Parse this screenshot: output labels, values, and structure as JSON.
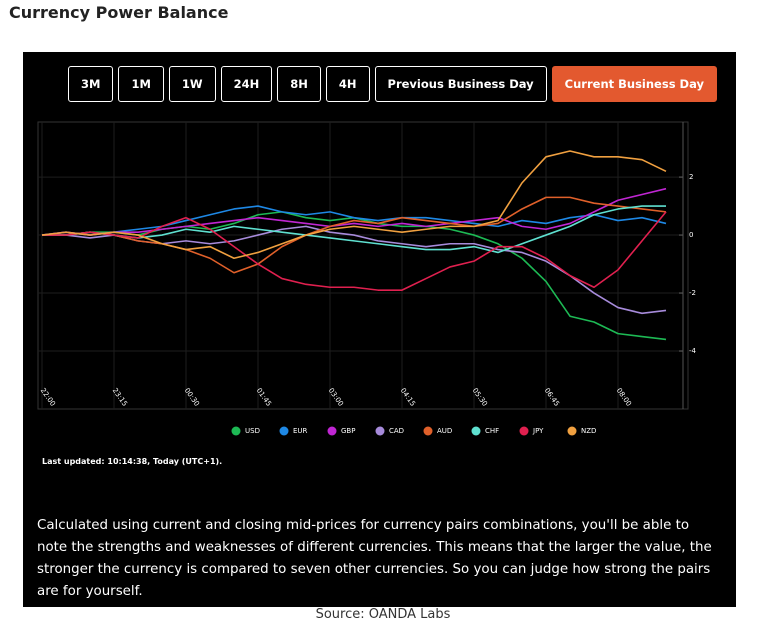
{
  "header": {
    "title": "Currency Power Balance"
  },
  "buttons": {
    "labels": [
      "3M",
      "1M",
      "1W",
      "24H",
      "8H",
      "4H",
      "Previous Business Day",
      "Current Business Day"
    ],
    "active": 7,
    "active_color": "#e3592f"
  },
  "chart_data": {
    "type": "line",
    "categories": [
      "22:00",
      null,
      null,
      "23:15",
      null,
      null,
      "00:30",
      null,
      null,
      "01:45",
      null,
      null,
      "03:00",
      null,
      null,
      "04:15",
      null,
      null,
      "05:30",
      null,
      null,
      "06:45",
      null,
      null,
      "08:00",
      null,
      null
    ],
    "series": [
      {
        "name": "USD",
        "color": "#1db954",
        "values": [
          0,
          0,
          0.1,
          0.1,
          0,
          0.2,
          0.3,
          0.2,
          0.4,
          0.7,
          0.8,
          0.6,
          0.5,
          0.6,
          0.4,
          0.3,
          0.3,
          0.2,
          0,
          -0.3,
          -0.8,
          -1.6,
          -2.8,
          -3,
          -3.4,
          -3.5,
          -3.6
        ]
      },
      {
        "name": "EUR",
        "color": "#1e88e5",
        "values": [
          0,
          0.1,
          0,
          0.1,
          0.2,
          0.3,
          0.5,
          0.7,
          0.9,
          1,
          0.8,
          0.7,
          0.8,
          0.6,
          0.5,
          0.6,
          0.6,
          0.5,
          0.4,
          0.3,
          0.5,
          0.4,
          0.6,
          0.7,
          0.5,
          0.6,
          0.4
        ]
      },
      {
        "name": "GBP",
        "color": "#c026d3",
        "values": [
          0,
          0.1,
          0,
          0.1,
          0.1,
          0.2,
          0.3,
          0.4,
          0.5,
          0.6,
          0.5,
          0.4,
          0.3,
          0.4,
          0.3,
          0.4,
          0.3,
          0.4,
          0.5,
          0.6,
          0.3,
          0.2,
          0.4,
          0.8,
          1.2,
          1.4,
          1.6
        ]
      },
      {
        "name": "CAD",
        "color": "#a78bdb",
        "values": [
          0,
          0,
          -0.1,
          0,
          -0.2,
          -0.3,
          -0.2,
          -0.3,
          -0.2,
          0,
          0.2,
          0.3,
          0.1,
          0,
          -0.2,
          -0.3,
          -0.4,
          -0.3,
          -0.3,
          -0.5,
          -0.6,
          -0.9,
          -1.4,
          -2,
          -2.5,
          -2.7,
          -2.6
        ]
      },
      {
        "name": "AUD",
        "color": "#e0602a",
        "values": [
          0,
          0,
          0.1,
          0,
          -0.2,
          -0.3,
          -0.5,
          -0.8,
          -1.3,
          -1,
          -0.4,
          0,
          0.3,
          0.5,
          0.4,
          0.6,
          0.5,
          0.4,
          0.3,
          0.4,
          0.9,
          1.3,
          1.3,
          1.1,
          1,
          0.9,
          0.8
        ]
      },
      {
        "name": "CHF",
        "color": "#5fe0d0",
        "values": [
          0,
          0,
          0.1,
          0,
          -0.1,
          0,
          0.2,
          0.1,
          0.3,
          0.2,
          0.1,
          0,
          -0.1,
          -0.2,
          -0.3,
          -0.4,
          -0.5,
          -0.5,
          -0.4,
          -0.6,
          -0.3,
          0,
          0.3,
          0.7,
          0.9,
          1,
          1
        ]
      },
      {
        "name": "JPY",
        "color": "#e0204f",
        "values": [
          0,
          0,
          0.1,
          0,
          -0.1,
          0.3,
          0.6,
          0.2,
          -0.4,
          -1,
          -1.5,
          -1.7,
          -1.8,
          -1.8,
          -1.9,
          -1.9,
          -1.5,
          -1.1,
          -0.9,
          -0.4,
          -0.4,
          -0.8,
          -1.4,
          -1.8,
          -1.2,
          -0.2,
          0.8
        ]
      },
      {
        "name": "NZD",
        "color": "#f0a040",
        "values": [
          0,
          0.1,
          0,
          0.1,
          0,
          -0.3,
          -0.5,
          -0.4,
          -0.8,
          -0.6,
          -0.3,
          0,
          0.2,
          0.3,
          0.2,
          0.1,
          0.2,
          0.3,
          0.3,
          0.5,
          1.8,
          2.7,
          2.9,
          2.7,
          2.7,
          2.6,
          2.2
        ]
      }
    ],
    "ylim": [
      -6,
      3.9
    ],
    "yticks": [
      -4,
      -2,
      0,
      2
    ],
    "grid": true
  },
  "last_updated": "Last updated: 10:14:38, Today (UTC+1).",
  "description": "Calculated using current and closing mid-prices for currency pairs combinations, you'll be able to note the strengths and weaknesses of different currencies. This means that the larger the value, the stronger the currency is compared to seven other currencies. So you can judge how strong the pairs are for yourself.",
  "source": "Source: OANDA Labs"
}
